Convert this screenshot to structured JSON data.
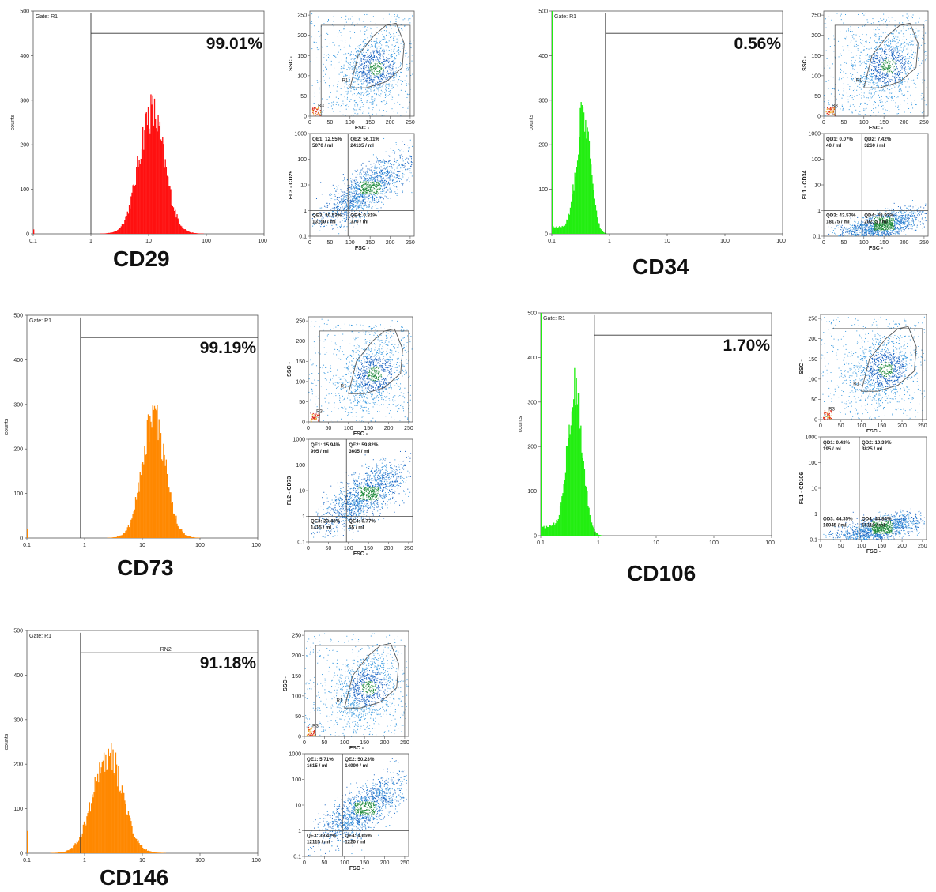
{
  "panels": [
    {
      "id": "cd29",
      "marker": "CD29",
      "percent_label": "99.01%",
      "gate": "Gate: R1",
      "region_label": "",
      "color": "#ff1111",
      "hist_peak_log10": 1.05,
      "hist_sigma": 0.22,
      "hist_max": 270,
      "hist_floor": 0,
      "hist_left_spike": 10,
      "gate_start": 1,
      "scatter_labels": {
        "r1": "R1",
        "r3": "R3"
      },
      "scatter_center": [
        165,
        120
      ],
      "gate_poly": [
        [
          100,
          70
        ],
        [
          120,
          150
        ],
        [
          160,
          200
        ],
        [
          190,
          225
        ],
        [
          215,
          230
        ],
        [
          235,
          180
        ],
        [
          230,
          120
        ],
        [
          190,
          85
        ],
        [
          140,
          70
        ]
      ],
      "quad": {
        "q1": [
          "QE1: 12.55%",
          "5070 / ml"
        ],
        "q2": [
          "QE2: 56.11%",
          "24135 / ml"
        ],
        "q3": [
          "QE3: 30.53%",
          "13150 / ml"
        ],
        "q4": [
          "QE4: 0.81%",
          "370 / ml"
        ]
      },
      "quad_ylabel": "FL3 - CD29",
      "quad_trend": "diag",
      "quad_vline": 95,
      "quad_hline": 1
    },
    {
      "id": "cd34",
      "marker": "CD34",
      "percent_label": "0.56%",
      "gate": "Gate: R1",
      "region_label": "",
      "color": "#22ee11",
      "hist_peak_log10": -0.45,
      "hist_sigma": 0.12,
      "hist_max": 255,
      "hist_floor": 15,
      "hist_left_spike": 500,
      "gate_start": 0.85,
      "scatter_labels": {
        "r1": "R1",
        "r3": "R3"
      },
      "scatter_center": [
        160,
        125
      ],
      "gate_poly": [
        [
          100,
          70
        ],
        [
          120,
          150
        ],
        [
          160,
          200
        ],
        [
          190,
          225
        ],
        [
          215,
          230
        ],
        [
          235,
          180
        ],
        [
          230,
          120
        ],
        [
          190,
          85
        ],
        [
          140,
          70
        ]
      ],
      "quad": {
        "q1": [
          "QD1: 0.07%",
          "40 / ml"
        ],
        "q2": [
          "QD2: 7.42%",
          "3260 / ml"
        ],
        "q3": [
          "QD3: 43.57%",
          "18175 / ml"
        ],
        "q4": [
          "QD4: 48.93%",
          "20215 / ml"
        ]
      },
      "quad_ylabel": "FL1 - CD34",
      "quad_trend": "low",
      "quad_vline": 95,
      "quad_hline": 1
    },
    {
      "id": "cd73",
      "marker": "CD73",
      "percent_label": "99.19%",
      "gate": "Gate: R1",
      "region_label": "",
      "color": "#ff8800",
      "hist_peak_log10": 1.2,
      "hist_sigma": 0.2,
      "hist_max": 265,
      "hist_floor": 0,
      "hist_left_spike": 20,
      "gate_start": 0.85,
      "scatter_labels": {
        "r1": "R1",
        "r3": "R3"
      },
      "scatter_center": [
        165,
        120
      ],
      "gate_poly": [
        [
          100,
          70
        ],
        [
          120,
          150
        ],
        [
          160,
          200
        ],
        [
          190,
          225
        ],
        [
          215,
          230
        ],
        [
          235,
          180
        ],
        [
          230,
          120
        ],
        [
          190,
          85
        ],
        [
          140,
          70
        ]
      ],
      "quad": {
        "q1": [
          "QE1: 15.94%",
          "995 / ml"
        ],
        "q2": [
          "QE2: 59.82%",
          "3605 / ml"
        ],
        "q3": [
          "QE3: 23.48%",
          "1415 / ml"
        ],
        "q4": [
          "QE4: 0.77%",
          "55 / ml"
        ]
      },
      "quad_ylabel": "FL2 - CD73",
      "quad_trend": "diag",
      "quad_vline": 95,
      "quad_hline": 1
    },
    {
      "id": "cd106",
      "marker": "CD106",
      "percent_label": "1.70%",
      "gate": "Gate: R1",
      "region_label": "",
      "color": "#22ee11",
      "hist_peak_log10": -0.4,
      "hist_sigma": 0.13,
      "hist_max": 310,
      "hist_floor": 20,
      "hist_left_spike": 500,
      "gate_start": 0.85,
      "scatter_labels": {
        "r1": "R1",
        "r3": "R3"
      },
      "scatter_center": [
        160,
        125
      ],
      "gate_poly": [
        [
          100,
          70
        ],
        [
          120,
          150
        ],
        [
          160,
          200
        ],
        [
          190,
          225
        ],
        [
          215,
          230
        ],
        [
          235,
          180
        ],
        [
          230,
          120
        ],
        [
          190,
          85
        ],
        [
          140,
          70
        ]
      ],
      "quad": {
        "q1": [
          "QD1: 0.43%",
          "195 / ml"
        ],
        "q2": [
          "QD2: 10.39%",
          "3825 / ml"
        ],
        "q3": [
          "QD3: 44.35%",
          "16045 / ml"
        ],
        "q4": [
          "QD4: 44.84%",
          "15110 / ml"
        ]
      },
      "quad_ylabel": "FL1 - CD106",
      "quad_trend": "low",
      "quad_vline": 95,
      "quad_hline": 1
    },
    {
      "id": "cd146",
      "marker": "CD146",
      "percent_label": "91.18%",
      "gate": "Gate: R1",
      "region_label": "RN2",
      "color": "#ff8800",
      "hist_peak_log10": 0.4,
      "hist_sigma": 0.25,
      "hist_max": 220,
      "hist_floor": 0,
      "hist_left_spike": 50,
      "gate_start": 0.85,
      "scatter_labels": {
        "r1": "R1",
        "r3": "R3"
      },
      "scatter_center": [
        160,
        120
      ],
      "gate_poly": [
        [
          100,
          70
        ],
        [
          120,
          150
        ],
        [
          160,
          200
        ],
        [
          190,
          225
        ],
        [
          215,
          230
        ],
        [
          235,
          180
        ],
        [
          230,
          120
        ],
        [
          190,
          85
        ],
        [
          140,
          70
        ]
      ],
      "quad": {
        "q1": [
          "QE1: 5.71%",
          "1615 / ml"
        ],
        "q2": [
          "QE2: 50.23%",
          "14990 / ml"
        ],
        "q3": [
          "QE3: 39.42%",
          "12115 / ml"
        ],
        "q4": [
          "QE4: 4.65%",
          "1220 / ml"
        ]
      },
      "quad_ylabel": "",
      "quad_trend": "diag",
      "quad_vline": 95,
      "quad_hline": 1
    }
  ],
  "hist_axis": {
    "ylabel": "counts",
    "yticks": [
      "0",
      "100",
      "200",
      "300",
      "400",
      "500"
    ],
    "xticks": [
      "0.1",
      "1",
      "10",
      "100",
      "1000"
    ]
  },
  "scatter_axis": {
    "xlabel": "FSC -",
    "ylabel": "SSC -",
    "ticks": [
      "0",
      "50",
      "100",
      "150",
      "200",
      "250"
    ]
  },
  "quad_axis": {
    "xlabel": "FSC -",
    "yticks": [
      "0.1",
      "1",
      "10",
      "100",
      "1000"
    ],
    "xticks": [
      "0",
      "50",
      "100",
      "150",
      "200",
      "250"
    ]
  },
  "chart_data": [
    {
      "type": "bar",
      "title": "CD29",
      "xlabel": "",
      "ylabel": "counts",
      "xscale": "log",
      "xlim": [
        0.1,
        1000
      ],
      "ylim": [
        0,
        500
      ],
      "positive_percent": 99.01
    },
    {
      "type": "bar",
      "title": "CD34",
      "xlabel": "",
      "ylabel": "counts",
      "xscale": "log",
      "xlim": [
        0.1,
        1000
      ],
      "ylim": [
        0,
        500
      ],
      "positive_percent": 0.56
    },
    {
      "type": "bar",
      "title": "CD73",
      "xlabel": "",
      "ylabel": "counts",
      "xscale": "log",
      "xlim": [
        0.1,
        1000
      ],
      "ylim": [
        0,
        500
      ],
      "positive_percent": 99.19
    },
    {
      "type": "bar",
      "title": "CD106",
      "xlabel": "",
      "ylabel": "counts",
      "xscale": "log",
      "xlim": [
        0.1,
        1000
      ],
      "ylim": [
        0,
        500
      ],
      "positive_percent": 1.7
    },
    {
      "type": "bar",
      "title": "CD146",
      "xlabel": "",
      "ylabel": "counts",
      "xscale": "log",
      "xlim": [
        0.1,
        1000
      ],
      "ylim": [
        0,
        500
      ],
      "positive_percent": 91.18
    }
  ]
}
